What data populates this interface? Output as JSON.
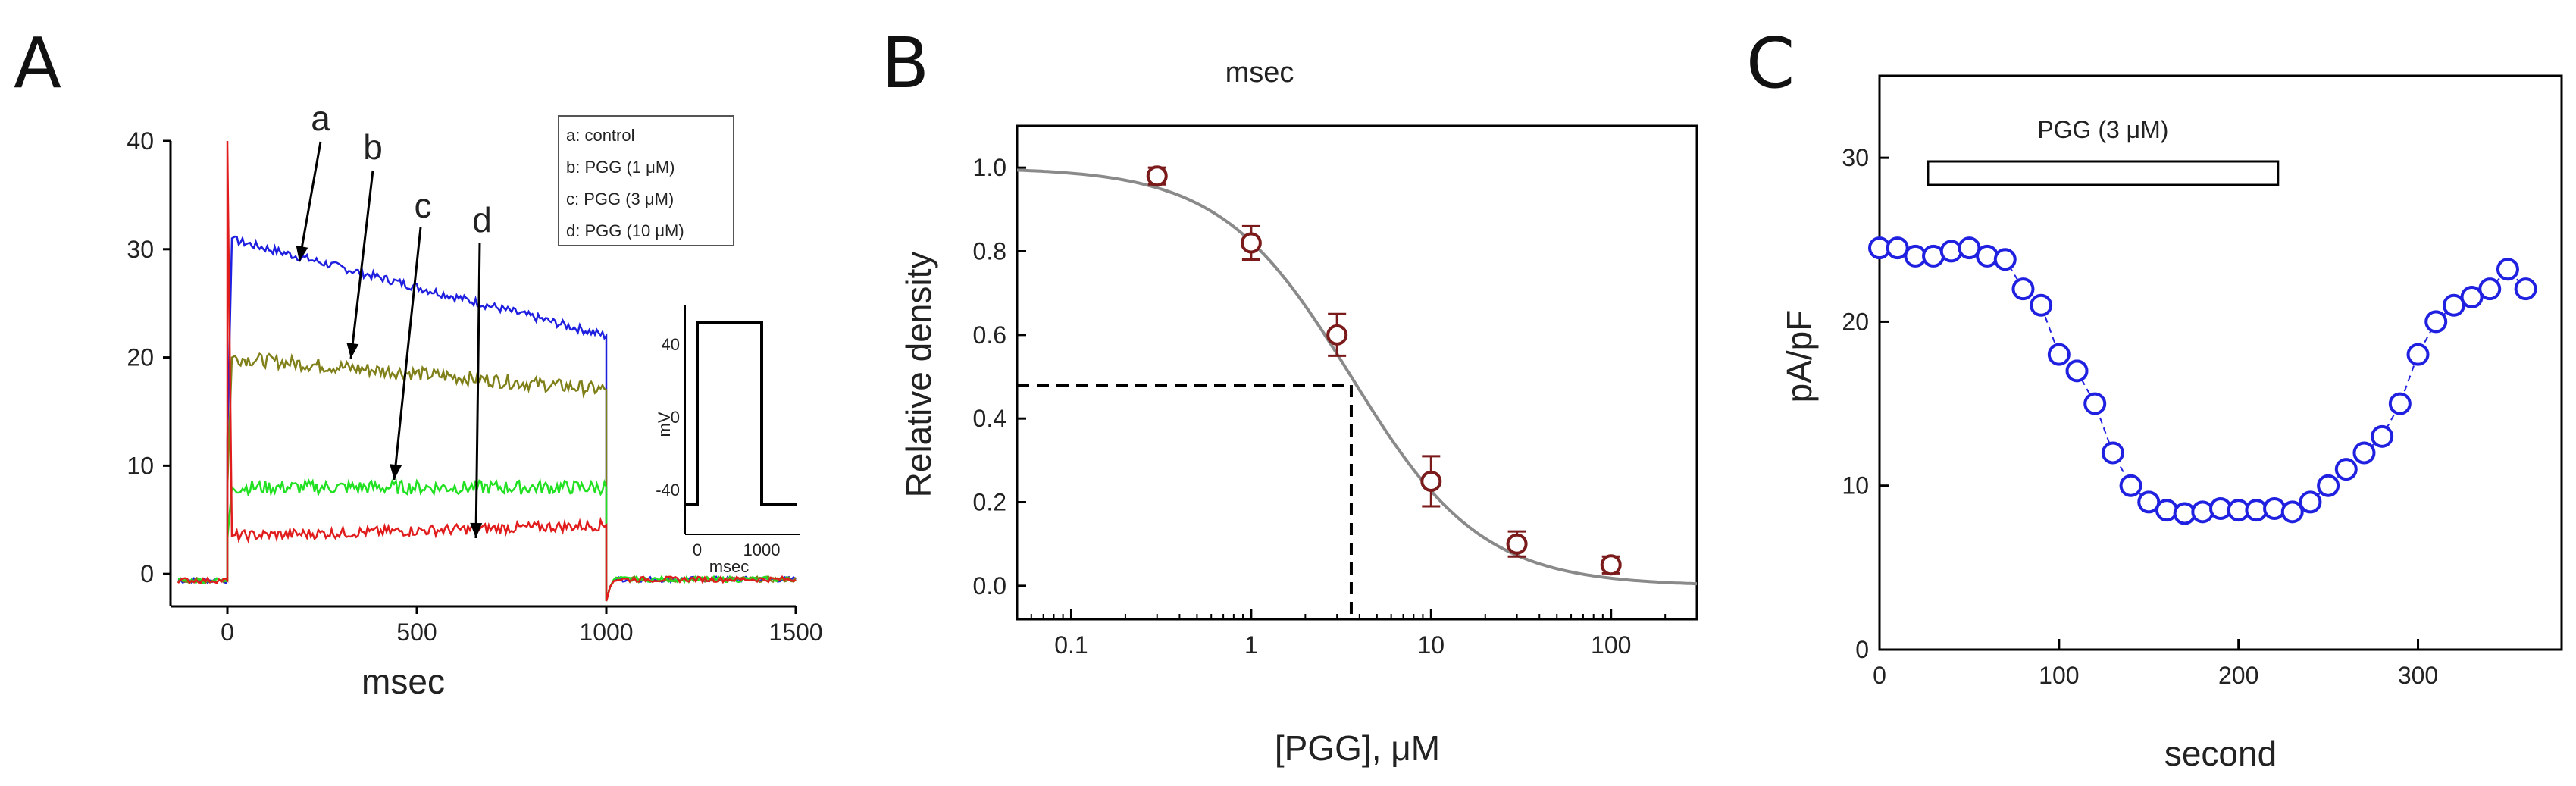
{
  "panels": {
    "A": {
      "letter": "A",
      "chart_data": {
        "type": "line",
        "xlabel": "msec",
        "ylabel": "",
        "xlim": [
          -150,
          1500
        ],
        "ylim": [
          -3,
          40
        ],
        "x_ticks": [
          "0",
          "500",
          "1000",
          "1500"
        ],
        "y_ticks": [
          "0",
          "10",
          "20",
          "30",
          "40"
        ],
        "series": [
          {
            "name": "a: control",
            "label": "a",
            "color": "#1f1fe0",
            "peak": 31,
            "end": 22
          },
          {
            "name": "b: PGG (1 μM)",
            "label": "b",
            "color": "#80801a",
            "peak": 20,
            "end": 17
          },
          {
            "name": "c: PGG (3 μM)",
            "label": "c",
            "color": "#22e022",
            "peak": 8,
            "end": 8
          },
          {
            "name": "d: PGG (10 μM)",
            "label": "d",
            "color": "#e01c1c",
            "peak": 3.5,
            "end": 4.5
          }
        ],
        "legend": [
          "a: control",
          "b: PGG (1 μM)",
          "c: PGG (3 μM)",
          "d: PGG (10 μM)"
        ],
        "inset": {
          "ylabel": "mV",
          "xlabel": "msec",
          "y_ticks": [
            "40",
            "0",
            "-40"
          ],
          "x_ticks": [
            "0",
            "1000"
          ],
          "holding": -50,
          "step": 50,
          "step_start": 0,
          "step_end": 1000
        }
      }
    },
    "B": {
      "letter": "B",
      "title": "msec",
      "chart_data": {
        "type": "scatter",
        "title": "msec",
        "xlabel": "[PGG], μM",
        "ylabel": "Relative density",
        "xscale": "log",
        "xlim": [
          0.05,
          300
        ],
        "ylim": [
          -0.08,
          1.1
        ],
        "x_ticks": [
          "0.1",
          "1",
          "10",
          "100"
        ],
        "y_ticks": [
          "0.0",
          "0.2",
          "0.4",
          "0.6",
          "0.8",
          "1.0"
        ],
        "x": [
          0.3,
          1,
          3,
          10,
          30,
          100
        ],
        "y": [
          0.98,
          0.82,
          0.6,
          0.25,
          0.1,
          0.05
        ],
        "err": [
          0.02,
          0.04,
          0.05,
          0.06,
          0.03,
          0.02
        ],
        "fit": {
          "IC50": 3.6,
          "hill": 1.2
        },
        "ic50_line": {
          "x": 3.6,
          "y": 0.48
        }
      }
    },
    "C": {
      "letter": "C",
      "chart_data": {
        "type": "scatter",
        "xlabel": "second",
        "ylabel": "pA/pF",
        "xlim": [
          0,
          380
        ],
        "ylim": [
          0,
          35
        ],
        "x_ticks": [
          "0",
          "100",
          "200",
          "300"
        ],
        "y_ticks": [
          "0",
          "10",
          "20",
          "30"
        ],
        "bar_label": "PGG (3 μM)",
        "bar_range": [
          27,
          222
        ],
        "x": [
          0,
          10,
          20,
          30,
          40,
          50,
          60,
          70,
          80,
          90,
          100,
          110,
          120,
          130,
          140,
          150,
          160,
          170,
          180,
          190,
          200,
          210,
          220,
          230,
          240,
          250,
          260,
          270,
          280,
          290,
          300,
          310,
          320,
          330,
          340,
          350,
          360
        ],
        "y": [
          24.5,
          24.5,
          24.0,
          24.0,
          24.3,
          24.5,
          24.0,
          23.8,
          22.0,
          21.0,
          18.0,
          17.0,
          15.0,
          12.0,
          10.0,
          9.0,
          8.5,
          8.3,
          8.4,
          8.6,
          8.5,
          8.5,
          8.6,
          8.4,
          9.0,
          10.0,
          11.0,
          12.0,
          13.0,
          15.0,
          18.0,
          20.0,
          21.0,
          21.5,
          22.0,
          23.2,
          22.0
        ]
      }
    }
  }
}
